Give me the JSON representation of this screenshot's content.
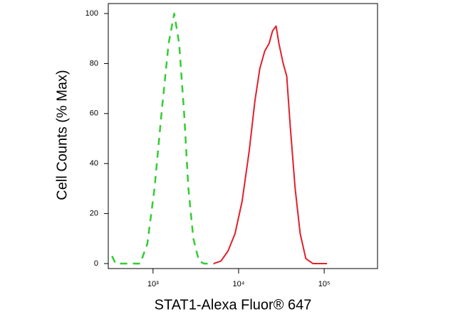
{
  "chart_data": {
    "type": "line",
    "x_label": "STAT1-Alexa Fluor® 647",
    "y_label": "Cell Counts (% Max)",
    "xscale": "log",
    "xlim": [
      300,
      420000
    ],
    "xticks": [
      {
        "value": 1000,
        "label": "10³"
      },
      {
        "value": 10000,
        "label": "10⁴"
      },
      {
        "value": 100000,
        "label": "10⁵"
      }
    ],
    "ylim": [
      -2,
      104
    ],
    "yticks": [
      0,
      20,
      40,
      60,
      80,
      100
    ],
    "grid": false,
    "series": [
      {
        "color": "#33cc33",
        "dashed": true,
        "x": [
          332,
          365,
          710,
          859,
          1040,
          1256,
          1520,
          1770,
          2020,
          2310,
          2590,
          2960,
          3440,
          3940,
          5240
        ],
        "values": [
          3,
          0,
          0,
          8,
          30,
          60,
          88,
          100,
          88,
          60,
          30,
          10,
          1,
          0,
          0
        ]
      },
      {
        "color": "#e0202a",
        "dashed": false,
        "x": [
          5140,
          6210,
          7520,
          9090,
          11000,
          13300,
          15500,
          17700,
          20200,
          22700,
          24900,
          27400,
          29600,
          33200,
          36500,
          40100,
          45800,
          52400,
          61000,
          73800,
          108000
        ],
        "values": [
          0,
          1,
          5,
          12,
          25,
          45,
          65,
          78,
          85,
          88,
          93,
          95,
          88,
          80,
          75,
          55,
          30,
          12,
          2,
          0,
          0
        ]
      }
    ]
  }
}
